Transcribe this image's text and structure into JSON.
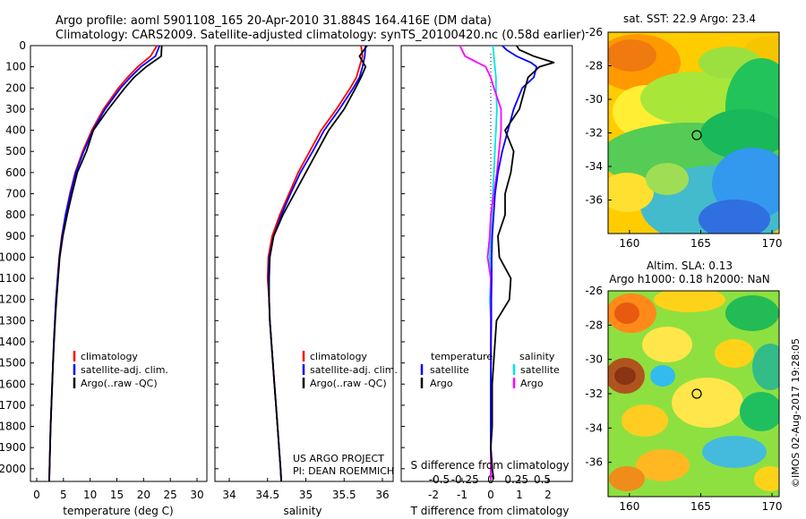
{
  "header": {
    "line1": "Argo profile: aoml 5901108_165 20-Apr-2010 31.884S 164.416E (DM data)",
    "line2": "Climatology: CARS2009. Satellite-adjusted climatology: synTS_20100420.nc (0.58d earlier)"
  },
  "colors": {
    "climatology": "#ff0000",
    "satellite": "#0000ff",
    "argo": "#000000",
    "s_satellite": "#00e5e5",
    "s_argo": "#ff00ff"
  },
  "panels": {
    "temperature": {
      "xlabel": "temperature (deg C)",
      "xticks": [
        "0",
        "5",
        "10",
        "15",
        "20",
        "25",
        "30"
      ],
      "legend": [
        "climatology",
        "satellite-adj. clim.",
        "Argo(..raw -QC)"
      ]
    },
    "salinity": {
      "xlabel": "salinity",
      "xticks": [
        "34",
        "34.5",
        "35",
        "35.5",
        "36"
      ],
      "legend": [
        "climatology",
        "satellite-adj. clim.",
        "Argo(..raw -QC)"
      ],
      "credit1": "US ARGO PROJECT",
      "credit2": "PI: DEAN ROEMMICH"
    },
    "difference": {
      "xlabel": "T difference from climatology",
      "sdiff_label": "S difference from climatology",
      "s_ticks": [
        "-0.5",
        "-0.25",
        "0",
        "0.25",
        "0.5"
      ],
      "t_ticks": [
        "-2",
        "-1",
        "0",
        "1",
        "2"
      ],
      "legend_t_title": "temperature",
      "legend_s_title": "salinity",
      "legend_t": [
        "satellite",
        "Argo"
      ],
      "legend_s": [
        "satellite",
        "Argo"
      ]
    }
  },
  "depth_ticks": [
    "0",
    "100",
    "200",
    "300",
    "400",
    "500",
    "600",
    "700",
    "800",
    "900",
    "1000",
    "1100",
    "1200",
    "1300",
    "1400",
    "1500",
    "1600",
    "1700",
    "1800",
    "1900",
    "2000"
  ],
  "maps": {
    "sst": {
      "title": "sat. SST: 22.9  Argo: 23.4"
    },
    "sla": {
      "title1": "Altim. SLA: 0.13",
      "title2": "Argo h1000: 0.18 h2000: NaN"
    },
    "yticks": [
      "-26",
      "-28",
      "-30",
      "-32",
      "-34",
      "-36"
    ],
    "xticks": [
      "160",
      "165",
      "170"
    ]
  },
  "footer": {
    "stamp": "©IMOS 02-Aug-2017 19:28:05"
  },
  "chart_data": [
    {
      "type": "line",
      "name": "temperature profile",
      "xlabel": "temperature (deg C)",
      "ylabel": "depth",
      "xlim": [
        -2,
        31
      ],
      "ylim": [
        2060,
        0
      ],
      "depth": [
        0,
        50,
        100,
        150,
        200,
        300,
        400,
        500,
        600,
        700,
        800,
        900,
        1000,
        1100,
        1200,
        1300,
        1400,
        1500,
        1600,
        1700,
        1800,
        1900,
        2000,
        2060
      ],
      "series": [
        {
          "name": "climatology",
          "values": [
            22.5,
            21.3,
            18.9,
            17.0,
            15.3,
            12.5,
            10.3,
            8.6,
            7.2,
            6.2,
            5.4,
            4.7,
            4.2,
            3.9,
            3.6,
            3.4,
            3.2,
            3.05,
            2.9,
            2.75,
            2.6,
            2.5,
            2.4,
            2.35
          ]
        },
        {
          "name": "satellite-adj. clim.",
          "values": [
            23.0,
            22.2,
            19.5,
            17.5,
            15.7,
            12.8,
            10.5,
            8.8,
            7.3,
            6.3,
            5.4,
            4.75,
            4.25,
            3.9,
            3.6,
            3.4,
            3.2,
            3.05,
            2.9,
            2.75,
            2.6,
            2.5,
            2.4,
            2.35
          ]
        },
        {
          "name": "Argo(..raw -QC)",
          "values": [
            23.4,
            23.3,
            20.5,
            18.2,
            16.5,
            13.4,
            10.6,
            9.3,
            7.6,
            6.6,
            5.7,
            4.9,
            4.3,
            4.0,
            3.7,
            3.45,
            3.25,
            3.05,
            2.9,
            2.75,
            2.6,
            2.5,
            2.4,
            2.35
          ]
        }
      ]
    },
    {
      "type": "line",
      "name": "salinity profile",
      "xlabel": "salinity",
      "ylabel": "depth",
      "xlim": [
        33.8,
        36.1
      ],
      "ylim": [
        2060,
        0
      ],
      "depth": [
        0,
        50,
        100,
        150,
        200,
        300,
        400,
        500,
        600,
        700,
        800,
        900,
        1000,
        1100,
        1200,
        1300,
        1400,
        1500,
        1600,
        1700,
        1800,
        1900,
        2000,
        2060
      ],
      "series": [
        {
          "name": "climatology",
          "values": [
            35.72,
            35.74,
            35.7,
            35.66,
            35.58,
            35.4,
            35.2,
            35.05,
            34.9,
            34.78,
            34.66,
            34.56,
            34.51,
            34.5,
            34.52,
            34.53,
            34.55,
            34.57,
            34.59,
            34.61,
            34.63,
            34.65,
            34.67,
            34.68
          ]
        },
        {
          "name": "satellite-adj. clim.",
          "values": [
            35.78,
            35.77,
            35.74,
            35.7,
            35.62,
            35.44,
            35.24,
            35.09,
            34.93,
            34.8,
            34.68,
            34.58,
            34.52,
            34.51,
            34.52,
            34.53,
            34.55,
            34.57,
            34.59,
            34.61,
            34.63,
            34.65,
            34.67,
            34.68
          ]
        },
        {
          "name": "Argo(..raw -QC)",
          "values": [
            35.8,
            35.7,
            35.78,
            35.72,
            35.65,
            35.5,
            35.3,
            35.15,
            35.0,
            34.85,
            34.7,
            34.58,
            34.53,
            34.52,
            34.52,
            34.53,
            34.55,
            34.57,
            34.59,
            34.61,
            34.63,
            34.65,
            34.67,
            34.68
          ]
        }
      ]
    },
    {
      "type": "line",
      "name": "difference from climatology",
      "xlabel": "T difference from climatology",
      "xlim": [
        -2.3,
        3.0
      ],
      "s_ticks": [
        -0.5,
        -0.25,
        0,
        0.25,
        0.5
      ],
      "ylim": [
        2060,
        0
      ],
      "t_depth": [
        0,
        20,
        50,
        80,
        100,
        150,
        200,
        300,
        400,
        500,
        600,
        700,
        800,
        900,
        1000,
        1100,
        1200,
        1300,
        1400,
        1500,
        1600,
        1700,
        1800,
        1900,
        2000,
        2050
      ],
      "t_series": [
        {
          "name": "satellite",
          "values": [
            0.4,
            0.55,
            0.9,
            1.4,
            1.6,
            1.5,
            1.1,
            0.8,
            0.6,
            0.4,
            0.25,
            0.15,
            0.1,
            0.05,
            0.03,
            0.03,
            0.02,
            0.02,
            0.01,
            0.01,
            0.0,
            0.0,
            0.0,
            0.0,
            0.05,
            0.1
          ]
        },
        {
          "name": "Argo",
          "values": [
            0.9,
            1.0,
            1.5,
            2.2,
            1.7,
            1.3,
            1.2,
            1.0,
            0.5,
            0.8,
            0.7,
            0.5,
            0.5,
            0.25,
            0.3,
            0.7,
            0.65,
            0.2,
            0.15,
            0.1,
            0.05,
            0.05,
            0.05,
            0.0,
            0.05,
            0.1
          ]
        }
      ],
      "s_depth": [
        0,
        50,
        100,
        150,
        200,
        300,
        400,
        500,
        600,
        700,
        800,
        900,
        1000,
        1100,
        1200,
        1300,
        1400,
        1500,
        1600,
        1700,
        1800,
        1900,
        2000,
        2050
      ],
      "s_series": [
        {
          "name": "satellite",
          "values": [
            0.02,
            0.03,
            0.04,
            0.05,
            0.05,
            0.06,
            0.05,
            0.04,
            0.03,
            0.02,
            0.01,
            0.0,
            -0.01,
            0.0,
            -0.01,
            0.0,
            0.0,
            0.0,
            0.0,
            0.0,
            0.0,
            0.0,
            0.0,
            0.0
          ]
        },
        {
          "name": "Argo",
          "values": [
            -0.3,
            -0.25,
            -0.05,
            0.0,
            0.03,
            0.1,
            0.1,
            0.08,
            0.06,
            0.03,
            0.0,
            -0.01,
            -0.03,
            0.0,
            0.0,
            0.0,
            0.0,
            0.0,
            0.0,
            0.0,
            0.0,
            0.0,
            0.0,
            0.0
          ]
        }
      ]
    }
  ]
}
